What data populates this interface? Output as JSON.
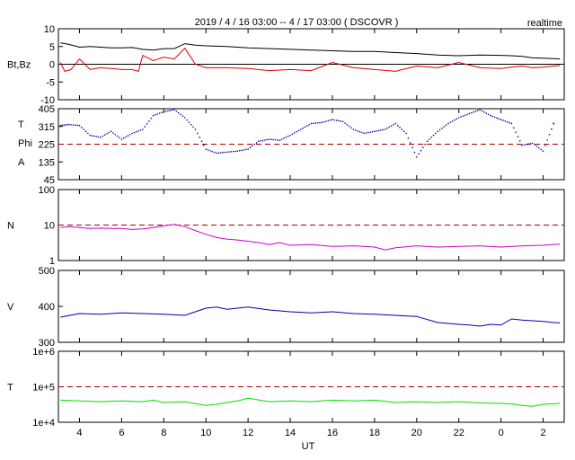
{
  "header": {
    "title": "2019 / 4 / 16   03:00 --  4 / 17   03:00 ( DSCOVR )",
    "mode": "realtime"
  },
  "x_axis": {
    "label": "UT",
    "ticks": [
      "4",
      "6",
      "8",
      "10",
      "12",
      "14",
      "16",
      "18",
      "20",
      "22",
      "0",
      "2"
    ],
    "tick_hours": [
      4,
      6,
      8,
      10,
      12,
      14,
      16,
      18,
      20,
      22,
      24,
      26
    ],
    "range_hours": [
      3,
      27
    ]
  },
  "chart_data": [
    {
      "type": "line",
      "panel": "magnetic-field",
      "ylabel": "Bt,Bz",
      "ylim": [
        -10,
        10
      ],
      "y_ticks": [
        "10",
        "5",
        "0",
        "-5",
        "-10"
      ],
      "y_tick_values": [
        10,
        5,
        0,
        -5,
        -10
      ],
      "reference_line": 0,
      "series": [
        {
          "color": "#000000",
          "x": [
            3.1,
            3.5,
            4,
            4.5,
            5,
            5.5,
            6,
            6.5,
            7,
            7.5,
            8,
            8.5,
            9,
            9.5,
            10,
            11,
            12,
            13,
            14,
            15,
            16,
            17,
            18,
            19,
            20,
            21,
            22,
            23,
            24,
            24.5,
            25,
            25.5,
            26,
            26.5,
            26.8
          ],
          "values": [
            6.0,
            5.6,
            4.8,
            5.0,
            4.8,
            4.6,
            4.6,
            4.7,
            4.2,
            4.0,
            4.4,
            4.4,
            5.8,
            5.4,
            5.2,
            5.0,
            4.6,
            4.4,
            4.2,
            4.0,
            3.8,
            3.6,
            3.6,
            3.3,
            3.0,
            2.6,
            2.4,
            2.6,
            2.5,
            2.4,
            2.2,
            1.8,
            1.7,
            1.6,
            1.5
          ]
        },
        {
          "color": "#dd0000",
          "x": [
            3.1,
            3.3,
            3.6,
            4,
            4.5,
            5,
            5.5,
            6,
            6.5,
            6.8,
            7,
            7.5,
            8,
            8.5,
            9,
            9.5,
            10,
            11,
            12,
            13,
            14,
            15,
            16,
            17,
            18,
            19,
            20,
            21,
            22,
            23,
            24,
            24.5,
            25,
            25.5,
            26,
            26.5,
            26.8
          ],
          "values": [
            0.5,
            -2.0,
            -1.5,
            1.5,
            -1.5,
            -1.0,
            -1.2,
            -1.5,
            -1.5,
            -2.0,
            2.5,
            1.0,
            2.0,
            1.5,
            4.5,
            0.0,
            -1.0,
            -1.0,
            -1.2,
            -1.8,
            -1.5,
            -1.8,
            0.5,
            -1.0,
            -1.5,
            -2.0,
            -0.5,
            -1.0,
            0.5,
            -1.0,
            -1.2,
            -0.8,
            -0.5,
            -1.0,
            -0.8,
            -0.5,
            -0.3
          ]
        }
      ]
    },
    {
      "type": "scatter",
      "panel": "phi-angle",
      "ylabel_lines": [
        "T",
        "Phi",
        "A"
      ],
      "ylim": [
        45,
        405
      ],
      "y_ticks": [
        "405",
        "315",
        "225",
        "135",
        "45"
      ],
      "y_tick_values": [
        405,
        315,
        225,
        135,
        45
      ],
      "reference_line": 225,
      "series": [
        {
          "color": "#0000aa",
          "x": [
            3.1,
            3.5,
            4,
            4.5,
            5,
            5.5,
            6,
            6.5,
            7,
            7.5,
            8,
            8.5,
            9,
            9.5,
            10,
            10.5,
            11,
            11.5,
            12,
            12.5,
            13,
            13.5,
            14,
            14.5,
            15,
            15.5,
            16,
            16.5,
            17,
            17.5,
            18,
            18.5,
            19,
            19.5,
            20,
            20.5,
            21,
            21.5,
            22,
            22.5,
            23,
            23.5,
            24,
            24.5,
            25,
            25.5,
            26,
            26.5
          ],
          "values": [
            320,
            325,
            320,
            270,
            260,
            290,
            250,
            280,
            300,
            370,
            390,
            400,
            360,
            300,
            200,
            180,
            185,
            190,
            200,
            240,
            250,
            245,
            270,
            300,
            330,
            335,
            350,
            340,
            300,
            280,
            290,
            300,
            330,
            280,
            160,
            240,
            290,
            330,
            360,
            380,
            400,
            370,
            350,
            330,
            220,
            230,
            190,
            330
          ]
        }
      ]
    },
    {
      "type": "line",
      "panel": "density",
      "ylabel": "N",
      "scale": "log",
      "ylim": [
        1,
        100
      ],
      "y_ticks": [
        "100",
        "10",
        "1"
      ],
      "y_tick_values": [
        100,
        10,
        1
      ],
      "reference_line": 10,
      "series": [
        {
          "color": "#cc00cc",
          "x": [
            3.1,
            3.5,
            4,
            4.5,
            5,
            5.5,
            6,
            6.5,
            7,
            7.5,
            8,
            8.5,
            9,
            9.5,
            10,
            10.5,
            11,
            11.5,
            12,
            12.5,
            13,
            13.5,
            14,
            15,
            16,
            17,
            18,
            18.5,
            19,
            20,
            21,
            22,
            23,
            24,
            25,
            26,
            26.8
          ],
          "values": [
            8.5,
            9.0,
            8.5,
            8.0,
            8.2,
            8.0,
            8.0,
            7.5,
            7.8,
            8.5,
            9.5,
            10.5,
            9.0,
            7.0,
            5.5,
            4.5,
            4.0,
            3.8,
            3.5,
            3.2,
            2.8,
            3.2,
            2.7,
            2.8,
            2.5,
            2.6,
            2.4,
            2.0,
            2.3,
            2.6,
            2.4,
            2.5,
            2.6,
            2.4,
            2.6,
            2.7,
            2.9
          ]
        }
      ]
    },
    {
      "type": "line",
      "panel": "speed",
      "ylabel": "V",
      "ylim": [
        300,
        500
      ],
      "y_ticks": [
        "500",
        "400",
        "300"
      ],
      "y_tick_values": [
        500,
        400,
        300
      ],
      "series": [
        {
          "color": "#0000aa",
          "x": [
            3.1,
            4,
            5,
            6,
            7,
            8,
            9,
            9.5,
            10,
            10.5,
            11,
            12,
            13,
            14,
            15,
            16,
            17,
            18,
            19,
            20,
            21,
            22,
            22.5,
            23,
            23.5,
            24,
            24.5,
            25,
            25.5,
            26,
            26.5,
            26.8
          ],
          "values": [
            370,
            380,
            378,
            382,
            380,
            378,
            375,
            385,
            395,
            398,
            392,
            398,
            390,
            385,
            382,
            385,
            380,
            378,
            375,
            372,
            355,
            350,
            348,
            345,
            350,
            348,
            365,
            362,
            360,
            358,
            355,
            354
          ]
        }
      ]
    },
    {
      "type": "line",
      "panel": "temperature",
      "ylabel": "T",
      "scale": "log",
      "ylim": [
        10000,
        1000000
      ],
      "y_ticks": [
        "1e+6",
        "1e+5",
        "1e+4"
      ],
      "y_tick_values": [
        1000000,
        100000,
        10000
      ],
      "reference_line": 100000,
      "series": [
        {
          "color": "#00dd00",
          "x": [
            3.1,
            4,
            5,
            6,
            7,
            7.5,
            8,
            9,
            10,
            10.5,
            11,
            11.5,
            12,
            13,
            14,
            15,
            16,
            17,
            18,
            19,
            20,
            21,
            22,
            23,
            24,
            24.5,
            25,
            25.5,
            26,
            26.8
          ],
          "values": [
            42000,
            40000,
            38000,
            40000,
            38000,
            42000,
            36000,
            38000,
            30000,
            32000,
            36000,
            40000,
            48000,
            38000,
            40000,
            38000,
            42000,
            40000,
            42000,
            36000,
            38000,
            36000,
            38000,
            35000,
            34000,
            33000,
            30000,
            28000,
            32000,
            34000
          ]
        }
      ]
    }
  ]
}
